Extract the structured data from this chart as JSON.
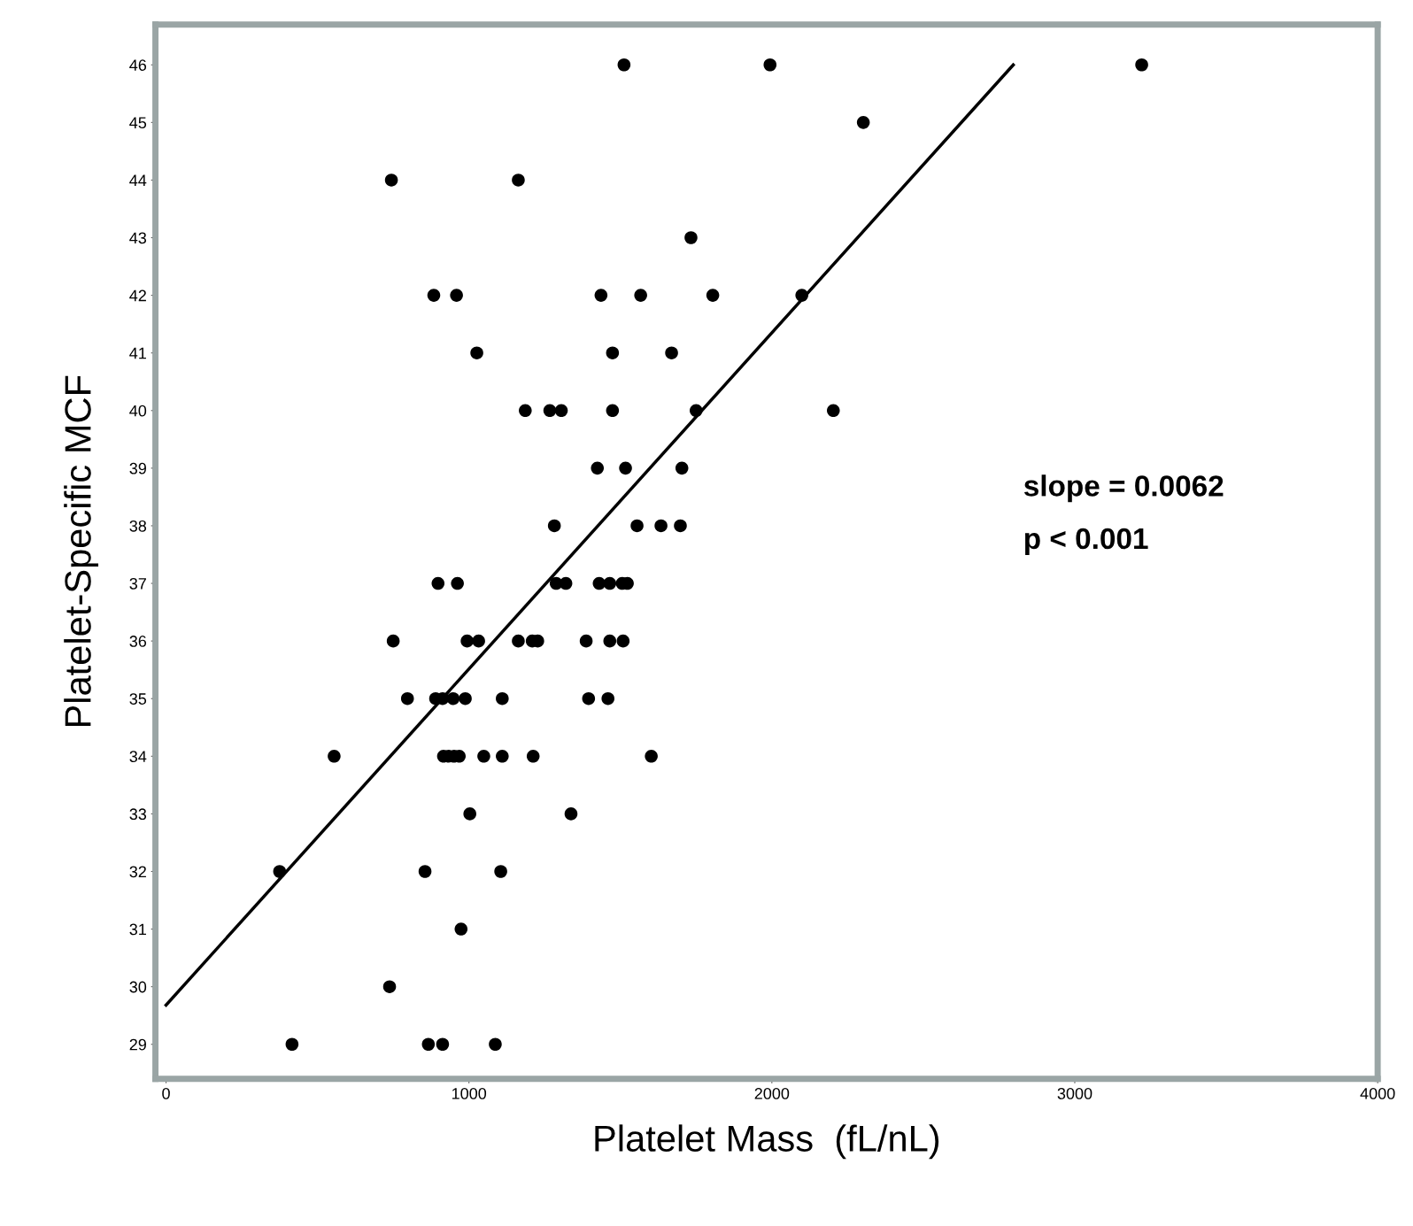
{
  "chart_data": {
    "type": "scatter",
    "xlabel": "Platelet Mass  (fL/nL)",
    "ylabel": "Platelet-Specific MCF",
    "xlim": [
      -35,
      4000
    ],
    "ylim": [
      28.4,
      46.7
    ],
    "xticks": [
      0,
      1000,
      2000,
      3000,
      4000
    ],
    "yticks": [
      29,
      30,
      31,
      32,
      33,
      34,
      35,
      36,
      37,
      38,
      39,
      40,
      41,
      42,
      43,
      44,
      45,
      46
    ],
    "grid": false,
    "series": [
      {
        "marker": "circle",
        "color": "#000000",
        "x": [
          1512,
          1994,
          3221,
          2302,
          744,
          1163,
          1733,
          884,
          959,
          1436,
          1567,
          1805,
          2099,
          1026,
          1474,
          1669,
          1186,
          1267,
          1305,
          1474,
          1750,
          2203,
          1424,
          1517,
          1703,
          1282,
          1555,
          1634,
          1698,
          898,
          962,
          1288,
          1320,
          1430,
          1465,
          1506,
          1523,
          750,
          994,
          1032,
          1163,
          1209,
          1227,
          1387,
          1465,
          1509,
          797,
          890,
          913,
          948,
          988,
          1110,
          1395,
          1459,
          555,
          916,
          933,
          951,
          968,
          1049,
          1110,
          1212,
          1602,
          1003,
          1337,
          375,
          855,
          1105,
          974,
          738,
          416,
          866,
          913,
          1087
        ],
        "values": [
          46,
          46,
          46,
          45,
          44,
          44,
          43,
          42,
          42,
          42,
          42,
          42,
          42,
          41,
          41,
          41,
          40,
          40,
          40,
          40,
          40,
          40,
          39,
          39,
          39,
          38,
          38,
          38,
          38,
          37,
          37,
          37,
          37,
          37,
          37,
          37,
          37,
          36,
          36,
          36,
          36,
          36,
          36,
          36,
          36,
          36,
          35,
          35,
          35,
          35,
          35,
          35,
          35,
          35,
          34,
          34,
          34,
          34,
          34,
          34,
          34,
          34,
          34,
          33,
          33,
          32,
          32,
          32,
          31,
          30,
          29,
          29,
          29,
          29
        ]
      },
      {
        "type": "line",
        "color": "#000000",
        "x": [
          0,
          2797
        ],
        "values": [
          29.68,
          46
        ]
      }
    ],
    "annotations": [
      "slope = 0.0062",
      "p < 0.001"
    ]
  }
}
